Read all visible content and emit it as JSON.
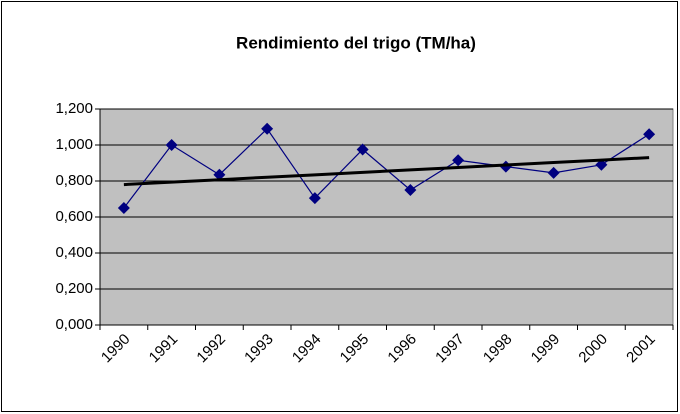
{
  "chart_data": {
    "type": "line",
    "title": "Rendimiento del trigo (TM/ha)",
    "categories": [
      "1990",
      "1991",
      "1992",
      "1993",
      "1994",
      "1995",
      "1996",
      "1997",
      "1998",
      "1999",
      "2000",
      "2001"
    ],
    "series": [
      {
        "color": "#000080",
        "marker": "diamond",
        "values": [
          0.65,
          1.0,
          0.835,
          1.09,
          0.705,
          0.975,
          0.75,
          0.915,
          0.88,
          0.845,
          0.89,
          1.06
        ]
      },
      {
        "color": "#000000",
        "marker": "none",
        "values": [
          0.78,
          0.794,
          0.807,
          0.821,
          0.834,
          0.848,
          0.862,
          0.875,
          0.889,
          0.903,
          0.916,
          0.93
        ]
      }
    ],
    "ylim": [
      0,
      1.2
    ],
    "yticks": [
      {
        "value": 0,
        "label": "0,000"
      },
      {
        "value": 0.2,
        "label": "0,200"
      },
      {
        "value": 0.4,
        "label": "0,400"
      },
      {
        "value": 0.6,
        "label": "0,600"
      },
      {
        "value": 0.8,
        "label": "0,800"
      },
      {
        "value": 1.0,
        "label": "1,000"
      },
      {
        "value": 1.2,
        "label": "1,200"
      }
    ],
    "grid": true,
    "plot_background": "#c0c0c0"
  }
}
